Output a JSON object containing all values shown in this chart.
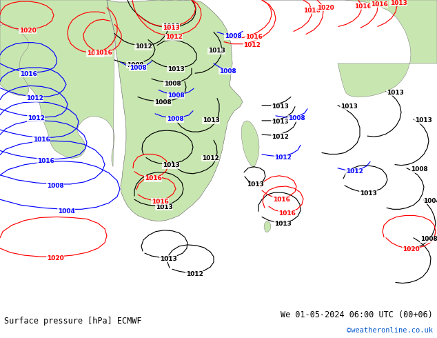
{
  "title_left": "Surface pressure [hPa] ECMWF",
  "title_right": "We 01-05-2024 06:00 UTC (00+06)",
  "copyright": "©weatheronline.co.uk",
  "bg_color_ocean": "#d8e8f0",
  "bg_color_land": "#c8e6b0",
  "bg_color_bottom": "#e8e8e8",
  "fig_width": 6.34,
  "fig_height": 4.9,
  "dpi": 100,
  "font_size_title": 8.5,
  "font_size_copyright": 7.5,
  "text_color": "#000000",
  "copyright_color": "#0055cc",
  "label_fontsize": 6.5,
  "isobar_lw": 0.85
}
